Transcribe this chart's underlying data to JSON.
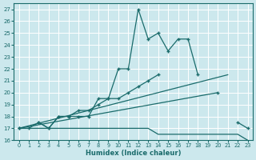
{
  "xlabel": "Humidex (Indice chaleur)",
  "x_values": [
    0,
    1,
    2,
    3,
    4,
    5,
    6,
    7,
    8,
    9,
    10,
    11,
    12,
    13,
    14,
    15,
    16,
    17,
    18,
    19,
    20,
    21,
    22,
    23
  ],
  "curve_jagged": [
    17.0,
    17.0,
    17.5,
    17.0,
    18.0,
    18.0,
    18.0,
    18.0,
    19.5,
    19.5,
    22.0,
    22.0,
    27.0,
    24.5,
    25.0,
    23.5,
    24.5,
    24.5,
    21.5,
    null,
    20.0,
    null,
    17.5,
    17.0
  ],
  "curve_upper_diag": [
    17.0,
    null,
    null,
    null,
    null,
    null,
    null,
    null,
    null,
    null,
    null,
    null,
    null,
    null,
    null,
    null,
    null,
    null,
    null,
    null,
    null,
    21.5,
    null,
    null
  ],
  "curve_lower_diag": [
    17.0,
    null,
    null,
    null,
    null,
    null,
    null,
    null,
    null,
    null,
    null,
    null,
    null,
    null,
    null,
    null,
    null,
    null,
    null,
    null,
    20.0,
    null,
    null,
    null
  ],
  "curve_mid_rising": [
    17.0,
    null,
    17.5,
    17.0,
    18.0,
    18.0,
    18.5,
    18.5,
    19.0,
    19.5,
    19.5,
    20.0,
    20.5,
    21.0,
    21.5,
    null,
    null,
    null,
    null,
    null,
    null,
    null,
    null,
    null
  ],
  "curve_flat": [
    17.0,
    17.0,
    17.0,
    17.0,
    17.0,
    17.0,
    17.0,
    17.0,
    17.0,
    17.0,
    17.0,
    17.0,
    17.0,
    17.0,
    16.5,
    16.5,
    16.5,
    16.5,
    16.5,
    16.5,
    16.5,
    16.5,
    16.5,
    16.0
  ],
  "bg_color": "#cce8ed",
  "grid_color": "#ffffff",
  "line_color": "#1a6b6b",
  "ylim": [
    16,
    27.5
  ],
  "xlim": [
    -0.5,
    23.5
  ],
  "yticks": [
    16,
    17,
    18,
    19,
    20,
    21,
    22,
    23,
    24,
    25,
    26,
    27
  ],
  "xticks": [
    0,
    1,
    2,
    3,
    4,
    5,
    6,
    7,
    8,
    9,
    10,
    11,
    12,
    13,
    14,
    15,
    16,
    17,
    18,
    19,
    20,
    21,
    22,
    23
  ]
}
